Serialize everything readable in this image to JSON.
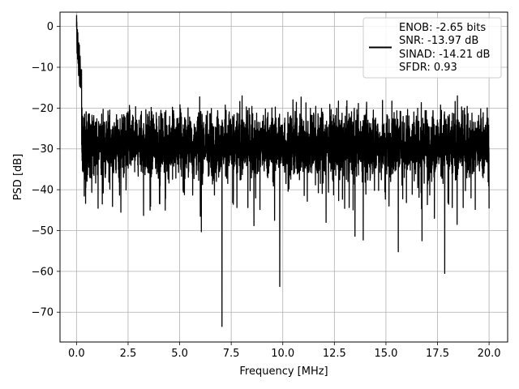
{
  "chart_data": {
    "type": "line",
    "xlabel": "Frequency [MHz]",
    "ylabel": "PSD [dB]",
    "xlim": [
      -0.8,
      20.9
    ],
    "ylim": [
      -77.3,
      3.5
    ],
    "x_ticks": [
      0.0,
      2.5,
      5.0,
      7.5,
      10.0,
      12.5,
      15.0,
      17.5,
      20.0
    ],
    "x_tick_labels": [
      "0.0",
      "2.5",
      "5.0",
      "7.5",
      "10.0",
      "12.5",
      "15.0",
      "17.5",
      "20.0"
    ],
    "y_ticks": [
      0,
      -10,
      -20,
      -30,
      -40,
      -50,
      -60,
      -70
    ],
    "y_tick_labels": [
      "0",
      "−10",
      "−20",
      "−30",
      "−40",
      "−50",
      "−60",
      "−70"
    ],
    "grid": true,
    "legend_position": "top-right",
    "legend_lines": [
      "ENOB: -2.65 bits",
      "SNR: -13.97 dB",
      "SINAD: -14.21 dB",
      "SFDR: 0.93"
    ],
    "series": [
      {
        "color": "#000000",
        "x_start": 0.0,
        "x_end": 20.0,
        "num_points": 4000,
        "noise_floor_mean_db": -27,
        "noise_upper_envelope_db": -18,
        "noise_lower_envelope_db": -40,
        "low_freq_peaks": [
          {
            "x": 0.0,
            "y": 0.0
          },
          {
            "x": 0.02,
            "y": -3.5
          },
          {
            "x": 0.05,
            "y": -8.0
          },
          {
            "x": 0.1,
            "y": -12.0
          },
          {
            "x": 0.2,
            "y": -15.0
          }
        ],
        "notable_dips": [
          {
            "x": 0.25,
            "y": -29
          },
          {
            "x": 0.45,
            "y": -39.5
          },
          {
            "x": 1.25,
            "y": -43.5
          },
          {
            "x": 2.15,
            "y": -45.5
          },
          {
            "x": 3.25,
            "y": -46.3
          },
          {
            "x": 4.3,
            "y": -45.0
          },
          {
            "x": 6.0,
            "y": -46.5
          },
          {
            "x": 6.05,
            "y": -50.3
          },
          {
            "x": 7.05,
            "y": -73.5
          },
          {
            "x": 8.6,
            "y": -48.8
          },
          {
            "x": 9.6,
            "y": -47.5
          },
          {
            "x": 9.85,
            "y": -63.7
          },
          {
            "x": 12.1,
            "y": -48.0
          },
          {
            "x": 13.5,
            "y": -51.4
          },
          {
            "x": 13.9,
            "y": -52.3
          },
          {
            "x": 15.6,
            "y": -55.2
          },
          {
            "x": 16.75,
            "y": -52.5
          },
          {
            "x": 17.35,
            "y": -47.0
          },
          {
            "x": 17.85,
            "y": -60.5
          },
          {
            "x": 18.45,
            "y": -48.5
          },
          {
            "x": 20.0,
            "y": -44.6
          }
        ]
      }
    ]
  }
}
